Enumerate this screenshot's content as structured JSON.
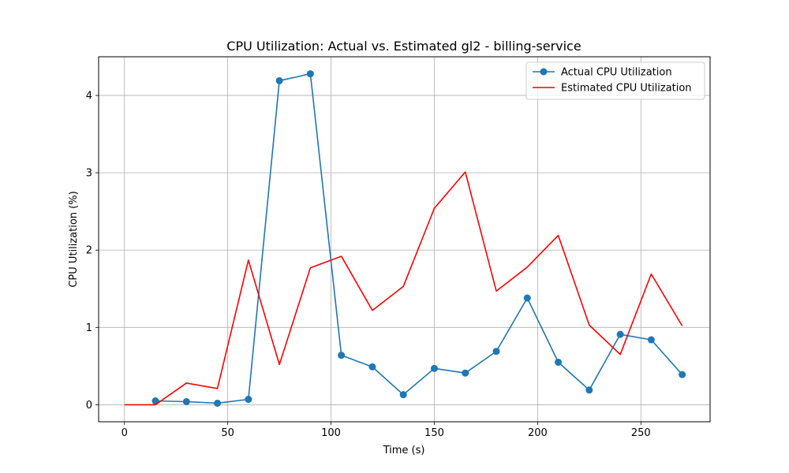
{
  "chart_data": {
    "type": "line",
    "title": "CPU Utilization: Actual vs. Estimated gl2 - billing-service",
    "xlabel": "Time (s)",
    "ylabel": "CPU Utilization (%)",
    "xlim": [
      -12.5,
      283.5
    ],
    "ylim": [
      -0.22,
      4.5
    ],
    "xticks": [
      0,
      50,
      100,
      150,
      200,
      250
    ],
    "yticks": [
      0,
      1,
      2,
      3,
      4
    ],
    "grid": true,
    "legend_position": "upper right",
    "series": [
      {
        "name": "Actual CPU Utilization",
        "color": "#1f77b4",
        "marker": "circle",
        "x": [
          15,
          30,
          45,
          60,
          75,
          90,
          105,
          120,
          135,
          150,
          165,
          180,
          195,
          210,
          225,
          240,
          255,
          270
        ],
        "y": [
          0.05,
          0.04,
          0.02,
          0.07,
          4.19,
          4.28,
          0.64,
          0.49,
          0.13,
          0.47,
          0.41,
          0.69,
          1.38,
          0.55,
          0.19,
          0.91,
          0.84,
          0.39
        ]
      },
      {
        "name": "Estimated CPU Utilization",
        "color": "#ff0000",
        "marker": "none",
        "x": [
          0,
          15,
          30,
          45,
          60,
          75,
          90,
          105,
          120,
          135,
          150,
          165,
          180,
          195,
          210,
          225,
          240,
          255,
          270
        ],
        "y": [
          0.0,
          0.0,
          0.28,
          0.21,
          1.87,
          0.52,
          1.77,
          1.92,
          1.22,
          1.53,
          2.54,
          3.01,
          1.47,
          1.78,
          2.19,
          1.03,
          0.65,
          1.69,
          1.02
        ]
      }
    ]
  }
}
